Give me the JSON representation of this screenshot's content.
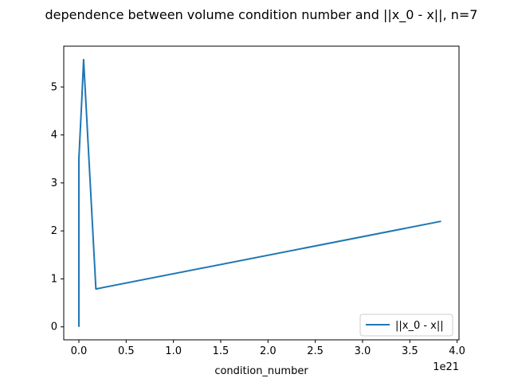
{
  "chart_data": {
    "type": "line",
    "title": "dependence between volume condition number and ||x_0 - x||, n=7",
    "xlabel": "condition_number",
    "ylabel": "",
    "x_offset_text": "1e21",
    "xlim": [
      -0.16,
      4.02
    ],
    "ylim": [
      -0.27,
      5.85
    ],
    "x_ticks": [
      0.0,
      0.5,
      1.0,
      1.5,
      2.0,
      2.5,
      3.0,
      3.5,
      4.0
    ],
    "x_tick_labels": [
      "0.0",
      "0.5",
      "1.0",
      "1.5",
      "2.0",
      "2.5",
      "3.0",
      "3.5",
      "4.0"
    ],
    "y_ticks": [
      0,
      1,
      2,
      3,
      4,
      5
    ],
    "y_tick_labels": [
      "0",
      "1",
      "2",
      "3",
      "4",
      "5"
    ],
    "grid": false,
    "legend_position": "lower-right",
    "series": [
      {
        "name": "||x_0 - x||",
        "color": "#1f77b4",
        "x": [
          0.0,
          0.0,
          0.0,
          0.0,
          0.0,
          0.03,
          0.05,
          0.18,
          3.83
        ],
        "y": [
          0.0,
          0.3,
          0.05,
          3.55,
          3.5,
          4.7,
          5.57,
          0.79,
          2.2
        ]
      }
    ]
  }
}
